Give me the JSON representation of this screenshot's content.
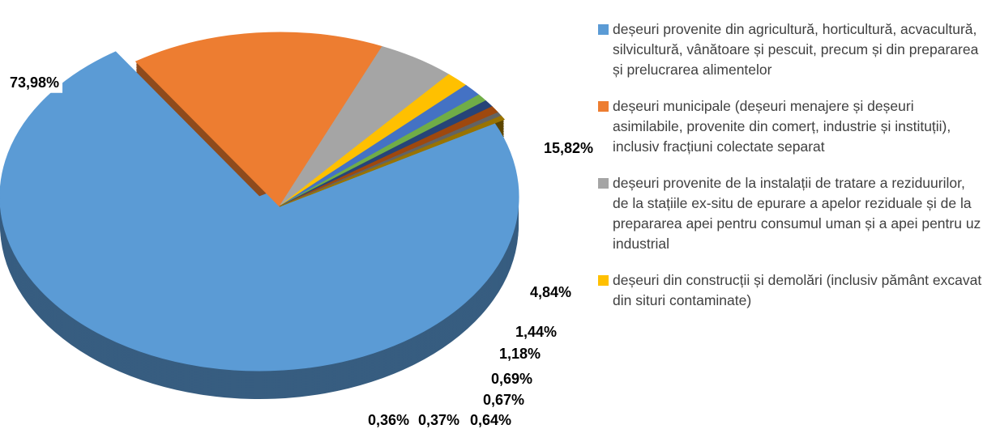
{
  "chart_data": {
    "type": "pie",
    "categories": [
      "deșeuri provenite din agricultură, horticultură, acvacultură, silvicultură, vânătoare și pescuit, precum și din prepararea și prelucrarea alimentelor",
      "deșeuri municipale (deșeuri menajere și deșeuri asimilabile, provenite din comerț, industrie și instituții), inclusiv fracțiuni colectate separat",
      "deșeuri provenite de la instalații de tratare a reziduurilor, de la stațiile ex-situ de epurare a apelor reziduale și de la prepararea apei pentru consumul uman și a apei pentru uz industrial",
      "deșeuri din construcții și demolări (inclusiv pământ excavat din situri contaminate)",
      null,
      null,
      null,
      null,
      null,
      null
    ],
    "values": [
      73.98,
      15.82,
      4.84,
      1.44,
      1.18,
      0.69,
      0.67,
      0.64,
      0.37,
      0.36
    ],
    "value_labels": [
      "73,98%",
      "15,82%",
      "4,84%",
      "1,44%",
      "1,18%",
      "0,69%",
      "0,67%",
      "0,64%",
      "0,37%",
      "0,36%"
    ],
    "colors": [
      "#5b9bd5",
      "#ed7d31",
      "#a5a5a5",
      "#ffc000",
      "#4472c4",
      "#70ad47",
      "#264478",
      "#9e480e",
      "#636363",
      "#997300"
    ],
    "legend": "right"
  }
}
